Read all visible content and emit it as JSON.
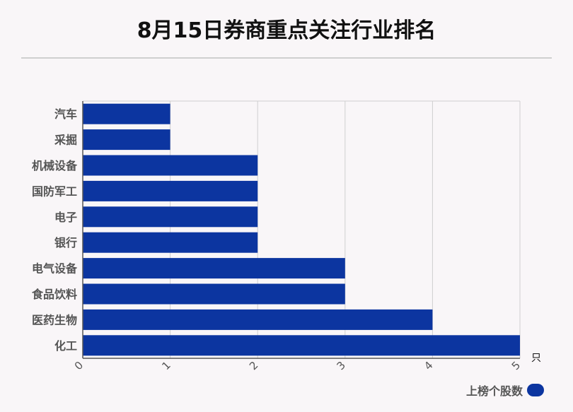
{
  "title": "8月15日券商重点关注行业排名",
  "chart_data": {
    "type": "bar",
    "orientation": "horizontal",
    "categories": [
      "汽车",
      "采掘",
      "机械设备",
      "国防军工",
      "电子",
      "银行",
      "电气设备",
      "食品饮料",
      "医药生物",
      "化工"
    ],
    "series": [
      {
        "name": "上榜个股数",
        "values": [
          1,
          1,
          2,
          2,
          2,
          2,
          3,
          3,
          4,
          5
        ]
      }
    ],
    "xlim": [
      0,
      5
    ],
    "xticks": [
      "0",
      "1",
      "2",
      "3",
      "4",
      "5"
    ],
    "xunit": "只",
    "grid": true,
    "legend_position": "bottom-right",
    "bar_color": "#0c35a0"
  }
}
